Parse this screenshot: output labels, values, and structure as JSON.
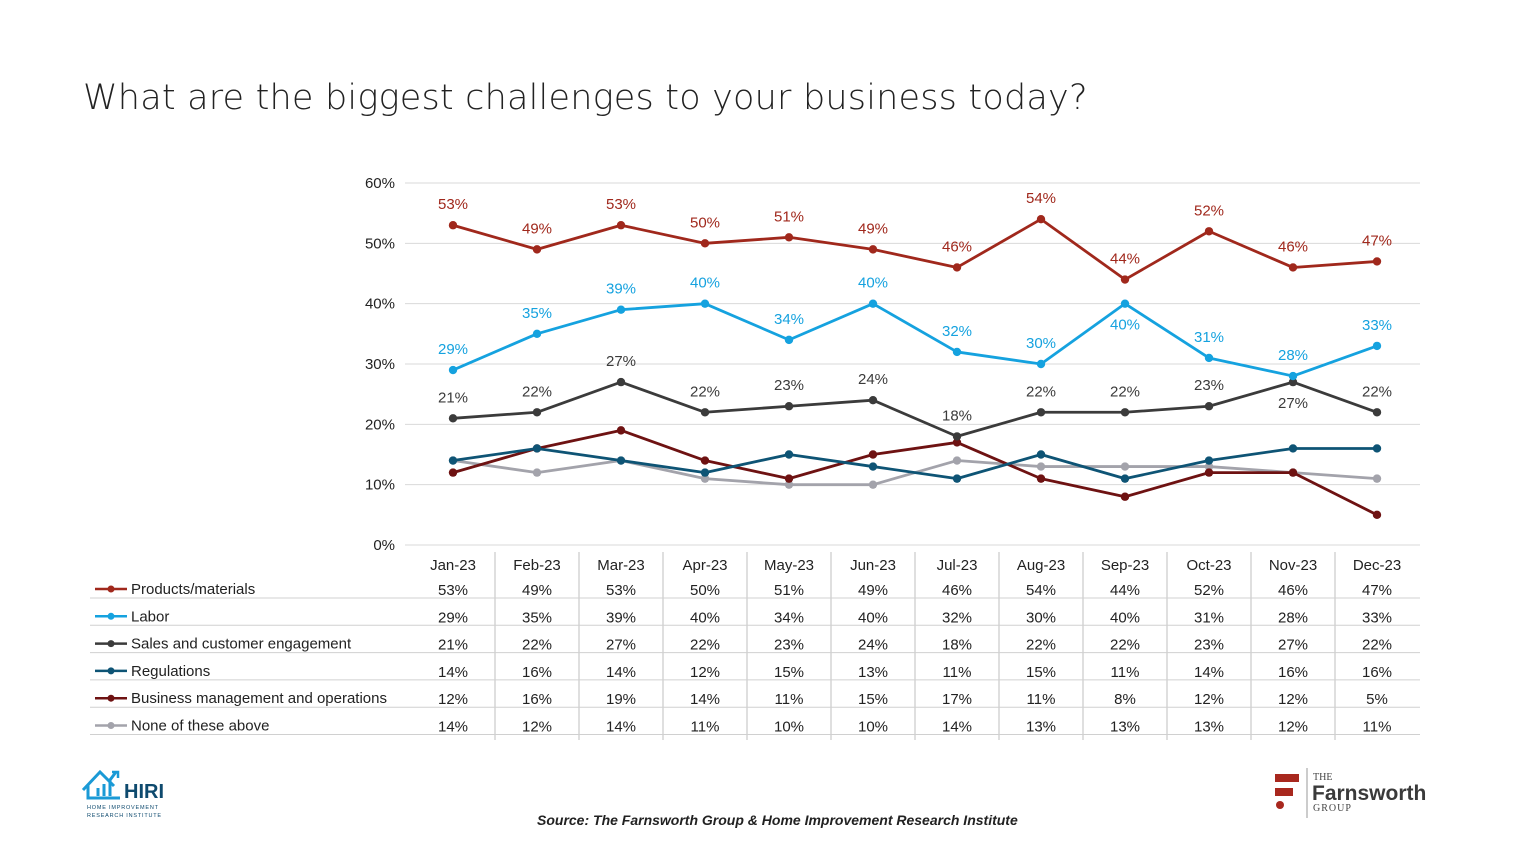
{
  "title": "What are the biggest challenges to your business today?",
  "source": "Source: The Farnsworth Group & Home Improvement Research Institute",
  "logos": {
    "left": {
      "name": "HIRI",
      "subtitle": "HOME IMPROVEMENT RESEARCH INSTITUTE",
      "color": "#1a9ad6"
    },
    "right": {
      "the": "THE",
      "name": "Farnsworth",
      "group": "GROUP",
      "color": "#a8281e"
    }
  },
  "chart_data": {
    "type": "line",
    "title": "What are the biggest challenges to your business today?",
    "categories": [
      "Jan-23",
      "Feb-23",
      "Mar-23",
      "Apr-23",
      "May-23",
      "Jun-23",
      "Jul-23",
      "Aug-23",
      "Sep-23",
      "Oct-23",
      "Nov-23",
      "Dec-23"
    ],
    "yticks": [
      "0%",
      "10%",
      "20%",
      "30%",
      "40%",
      "50%",
      "60%"
    ],
    "ylim": [
      0,
      60
    ],
    "grid": true,
    "data_table": true,
    "series": [
      {
        "name": "Products/materials",
        "color": "#a0281c",
        "values": [
          53,
          49,
          53,
          50,
          51,
          49,
          46,
          54,
          44,
          52,
          46,
          47
        ],
        "labeled": true
      },
      {
        "name": "Labor",
        "color": "#15a2df",
        "values": [
          29,
          35,
          39,
          40,
          34,
          40,
          32,
          30,
          40,
          31,
          28,
          33
        ],
        "labeled": true
      },
      {
        "name": "Sales and customer engagement",
        "color": "#3b3b3b",
        "values": [
          21,
          22,
          27,
          22,
          23,
          24,
          18,
          22,
          22,
          23,
          27,
          22
        ],
        "labeled": true
      },
      {
        "name": "Regulations",
        "color": "#0e5475",
        "values": [
          14,
          16,
          14,
          12,
          15,
          13,
          11,
          15,
          11,
          14,
          16,
          16
        ],
        "labeled": false
      },
      {
        "name": "Business management and operations",
        "color": "#6e1212",
        "values": [
          12,
          16,
          19,
          14,
          11,
          15,
          17,
          11,
          8,
          12,
          12,
          5
        ],
        "labeled": false
      },
      {
        "name": "None of these above",
        "color": "#a3a3ab",
        "values": [
          14,
          12,
          14,
          11,
          10,
          10,
          14,
          13,
          13,
          13,
          12,
          11
        ],
        "labeled": false
      }
    ]
  }
}
